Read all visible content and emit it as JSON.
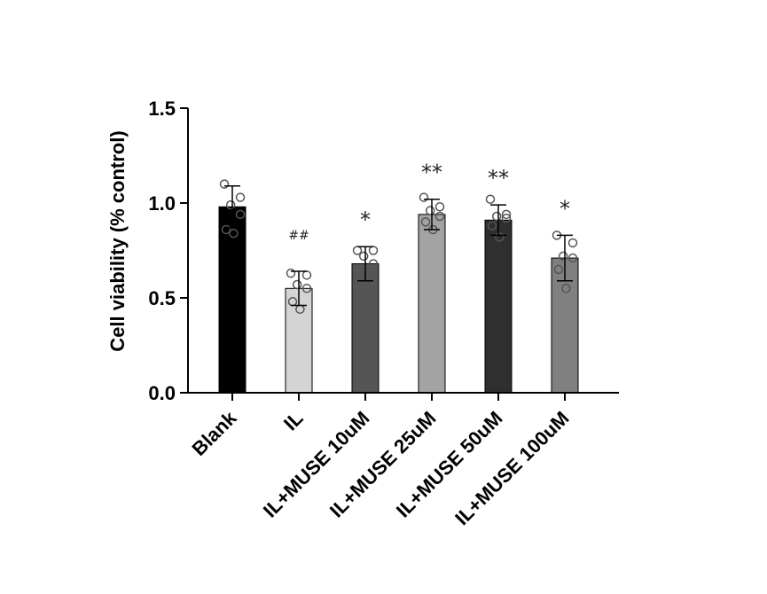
{
  "chart_data": {
    "type": "bar",
    "title": "",
    "xlabel": "",
    "ylabel": "Cell viability (% control)",
    "ylim": [
      0,
      1.5
    ],
    "yticks": [
      "0.0",
      "0.5",
      "1.0",
      "1.5"
    ],
    "grid": false,
    "legend": "none",
    "categories": [
      "Blank",
      "IL",
      "IL+MUSE 10uM",
      "IL+MUSE 25uM",
      "IL+MUSE 50uM",
      "IL+MUSE 100uM"
    ],
    "values": [
      0.98,
      0.55,
      0.68,
      0.94,
      0.91,
      0.71
    ],
    "errors": [
      0.11,
      0.09,
      0.09,
      0.08,
      0.08,
      0.12
    ],
    "points": [
      [
        1.1,
        1.03,
        0.99,
        0.94,
        0.86,
        0.84
      ],
      [
        0.63,
        0.62,
        0.57,
        0.55,
        0.48,
        0.44
      ],
      [
        0.75,
        0.75,
        0.72,
        0.68,
        0.62,
        0.57
      ],
      [
        1.03,
        0.98,
        0.96,
        0.93,
        0.9,
        0.86
      ],
      [
        1.02,
        0.94,
        0.93,
        0.92,
        0.88,
        0.82
      ],
      [
        0.83,
        0.79,
        0.72,
        0.71,
        0.65,
        0.55
      ]
    ],
    "significance": [
      "",
      "##",
      "*",
      "**",
      "**",
      "*"
    ],
    "colors": [
      "#000000",
      "#d4d4d4",
      "#555555",
      "#a3a3a3",
      "#2f2f2f",
      "#808080"
    ]
  }
}
